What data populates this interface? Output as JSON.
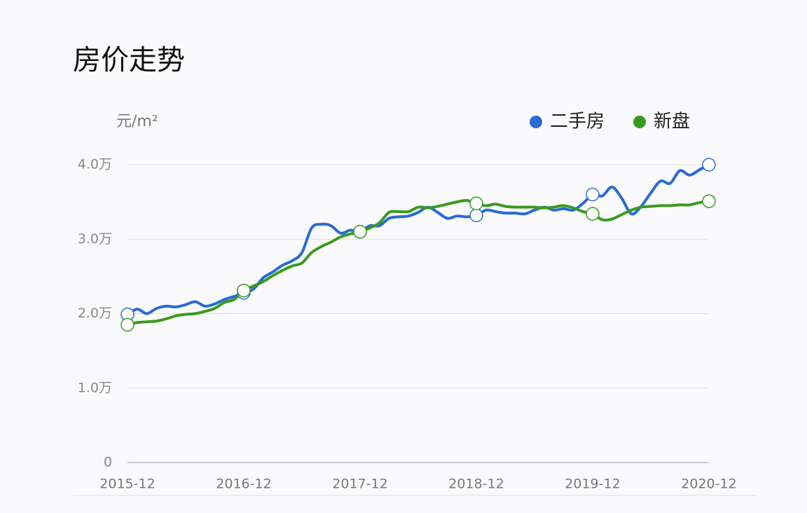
{
  "chart_data": {
    "type": "line",
    "title": "房价走势",
    "y_label": "元/m²",
    "categories": [
      "2015-12",
      null,
      null,
      null,
      null,
      null,
      null,
      null,
      null,
      null,
      null,
      null,
      "2016-12",
      null,
      null,
      null,
      null,
      null,
      null,
      null,
      null,
      null,
      null,
      null,
      "2017-12",
      null,
      null,
      null,
      null,
      null,
      null,
      null,
      null,
      null,
      null,
      null,
      "2018-12",
      null,
      null,
      null,
      null,
      null,
      null,
      null,
      null,
      null,
      null,
      null,
      "2019-12",
      null,
      null,
      null,
      null,
      null,
      null,
      null,
      null,
      null,
      null,
      null,
      "2020-12"
    ],
    "series": [
      {
        "name": "二手房",
        "color": "#2a6bd6",
        "values": [
          19900,
          20600,
          20000,
          20700,
          21000,
          20900,
          21200,
          21600,
          21000,
          21300,
          21900,
          22300,
          22800,
          23300,
          24800,
          25600,
          26500,
          27100,
          28200,
          31500,
          32000,
          31800,
          30800,
          31200,
          31000,
          31800,
          31800,
          32800,
          33000,
          33100,
          33600,
          34300,
          33600,
          32800,
          33100,
          33000,
          33200,
          33900,
          33700,
          33500,
          33500,
          33400,
          33900,
          34300,
          33900,
          34100,
          33900,
          34800,
          36000,
          35800,
          37000,
          35500,
          33400,
          34400,
          36200,
          37800,
          37500,
          39200,
          38600,
          39300,
          40000
        ]
      },
      {
        "name": "新盘",
        "color": "#3a9a1e",
        "values": [
          18500,
          18800,
          18900,
          19000,
          19300,
          19700,
          19900,
          20000,
          20300,
          20700,
          21500,
          21900,
          23100,
          23700,
          24300,
          25100,
          25800,
          26400,
          26800,
          28200,
          29000,
          29600,
          30300,
          30700,
          31000,
          31500,
          32200,
          33600,
          33700,
          33700,
          34300,
          34200,
          34400,
          34700,
          35000,
          35200,
          34800,
          34500,
          34700,
          34400,
          34300,
          34300,
          34300,
          34200,
          34300,
          34500,
          34200,
          33700,
          33400,
          32600,
          32700,
          33300,
          33900,
          34300,
          34400,
          34500,
          34500,
          34600,
          34600,
          34900,
          35100
        ]
      }
    ],
    "ylim": [
      0,
      40000
    ],
    "yticks": [
      0,
      {
        "value": 10000,
        "label": "1.0万"
      },
      {
        "value": 20000,
        "label": "2.0万"
      },
      {
        "value": 30000,
        "label": "3.0万"
      },
      {
        "value": 40000,
        "label": "4.0万"
      }
    ],
    "grid": true,
    "legend": "top-right"
  }
}
